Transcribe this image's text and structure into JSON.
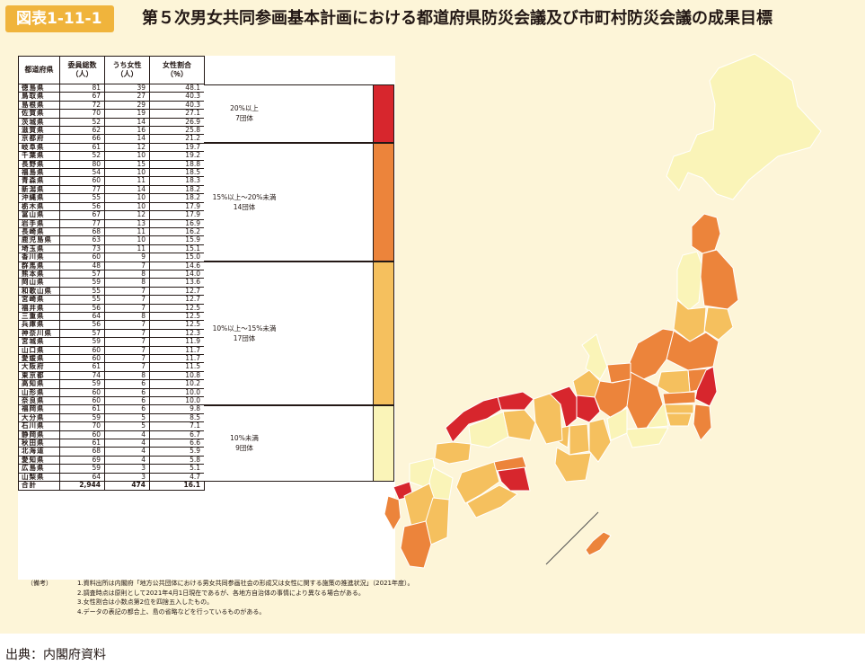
{
  "header": {
    "figure_label": "図表1-11-1",
    "title": "第５次男女共同参画基本計画における都道府県防災会議及び市町村防災会議の成果目標"
  },
  "chart_data": {
    "type": "table",
    "columns": [
      "都道府県",
      "委員総数\n（人）",
      "うち女性\n（人）",
      "女性割合\n（％）"
    ],
    "rows": [
      [
        "徳島県",
        "81",
        "39",
        "48.1"
      ],
      [
        "鳥取県",
        "67",
        "27",
        "40.3"
      ],
      [
        "島根県",
        "72",
        "29",
        "40.3"
      ],
      [
        "佐賀県",
        "70",
        "19",
        "27.1"
      ],
      [
        "茨城県",
        "52",
        "14",
        "26.9"
      ],
      [
        "滋賀県",
        "62",
        "16",
        "25.8"
      ],
      [
        "京都府",
        "66",
        "14",
        "21.2"
      ],
      [
        "岐阜県",
        "61",
        "12",
        "19.7"
      ],
      [
        "千葉県",
        "52",
        "10",
        "19.2"
      ],
      [
        "長野県",
        "80",
        "15",
        "18.8"
      ],
      [
        "福島県",
        "54",
        "10",
        "18.5"
      ],
      [
        "青森県",
        "60",
        "11",
        "18.3"
      ],
      [
        "新潟県",
        "77",
        "14",
        "18.2"
      ],
      [
        "沖縄県",
        "55",
        "10",
        "18.2"
      ],
      [
        "栃木県",
        "56",
        "10",
        "17.9"
      ],
      [
        "富山県",
        "67",
        "12",
        "17.9"
      ],
      [
        "岩手県",
        "77",
        "13",
        "16.9"
      ],
      [
        "長崎県",
        "68",
        "11",
        "16.2"
      ],
      [
        "鹿児島県",
        "63",
        "10",
        "15.9"
      ],
      [
        "埼玉県",
        "73",
        "11",
        "15.1"
      ],
      [
        "香川県",
        "60",
        "9",
        "15.0"
      ],
      [
        "群馬県",
        "48",
        "7",
        "14.6"
      ],
      [
        "熊本県",
        "57",
        "8",
        "14.0"
      ],
      [
        "岡山県",
        "59",
        "8",
        "13.6"
      ],
      [
        "和歌山県",
        "55",
        "7",
        "12.7"
      ],
      [
        "宮崎県",
        "55",
        "7",
        "12.7"
      ],
      [
        "福井県",
        "56",
        "7",
        "12.5"
      ],
      [
        "三重県",
        "64",
        "8",
        "12.5"
      ],
      [
        "兵庫県",
        "56",
        "7",
        "12.5"
      ],
      [
        "神奈川県",
        "57",
        "7",
        "12.3"
      ],
      [
        "宮城県",
        "59",
        "7",
        "11.9"
      ],
      [
        "山口県",
        "60",
        "7",
        "11.7"
      ],
      [
        "愛媛県",
        "60",
        "7",
        "11.7"
      ],
      [
        "大阪府",
        "61",
        "7",
        "11.5"
      ],
      [
        "東京都",
        "74",
        "8",
        "10.8"
      ],
      [
        "高知県",
        "59",
        "6",
        "10.2"
      ],
      [
        "山形県",
        "60",
        "6",
        "10.0"
      ],
      [
        "奈良県",
        "60",
        "6",
        "10.0"
      ],
      [
        "福岡県",
        "61",
        "6",
        "9.8"
      ],
      [
        "大分県",
        "59",
        "5",
        "8.5"
      ],
      [
        "石川県",
        "70",
        "5",
        "7.1"
      ],
      [
        "静岡県",
        "60",
        "4",
        "6.7"
      ],
      [
        "秋田県",
        "61",
        "4",
        "6.6"
      ],
      [
        "北海道",
        "68",
        "4",
        "5.9"
      ],
      [
        "愛知県",
        "69",
        "4",
        "5.8"
      ],
      [
        "広島県",
        "59",
        "3",
        "5.1"
      ],
      [
        "山梨県",
        "64",
        "3",
        "4.7"
      ]
    ],
    "total": [
      "合計",
      "2,944",
      "474",
      "16.1"
    ],
    "groups": [
      {
        "label": "20%以上\n7団体",
        "rows": 7,
        "color": "#d7262d"
      },
      {
        "label": "15%以上～20%未満\n14団体",
        "rows": 14,
        "color": "#ec843b"
      },
      {
        "label": "10%以上～15%未満\n17団体",
        "rows": 17,
        "color": "#f5c05e"
      },
      {
        "label": "10%未満\n9団体",
        "rows": 9,
        "color": "#faf4b8"
      }
    ]
  },
  "notes": {
    "head": "（備考）",
    "lines": [
      "1.資料出所は内閣府「地方公共団体における男女共同参画社会の形成又は女性に関する施策の推進状況」（2021年度）。",
      "2.調査時点は原則として2021年4月1日現在であるが、各地方自治体の事情により異なる場合がある。",
      "3.女性割合は小数点第2位を四捨五入したもの。",
      "4.データの表記の都合上、島の省略などを行っているものがある。"
    ]
  },
  "source": "出典：内閣府資料",
  "map": {
    "colors": {
      "red": "#d7262d",
      "orange": "#ec843b",
      "yellow": "#f5c05e",
      "pale": "#faf4b8"
    },
    "regions": [
      {
        "name": "北海道",
        "color": "pale"
      },
      {
        "name": "青森県",
        "color": "orange"
      },
      {
        "name": "岩手県",
        "color": "orange"
      },
      {
        "name": "秋田県",
        "color": "pale"
      },
      {
        "name": "宮城県",
        "color": "yellow"
      },
      {
        "name": "山形県",
        "color": "yellow"
      },
      {
        "name": "福島県",
        "color": "orange"
      },
      {
        "name": "茨城県",
        "color": "red"
      },
      {
        "name": "栃木県",
        "color": "orange"
      },
      {
        "name": "群馬県",
        "color": "yellow"
      },
      {
        "name": "埼玉県",
        "color": "orange"
      },
      {
        "name": "千葉県",
        "color": "orange"
      },
      {
        "name": "東京都",
        "color": "yellow"
      },
      {
        "name": "神奈川県",
        "color": "yellow"
      },
      {
        "name": "新潟県",
        "color": "orange"
      },
      {
        "name": "富山県",
        "color": "orange"
      },
      {
        "name": "石川県",
        "color": "pale"
      },
      {
        "name": "福井県",
        "color": "yellow"
      },
      {
        "name": "山梨県",
        "color": "pale"
      },
      {
        "name": "長野県",
        "color": "orange"
      },
      {
        "name": "岐阜県",
        "color": "orange"
      },
      {
        "name": "静岡県",
        "color": "pale"
      },
      {
        "name": "愛知県",
        "color": "pale"
      },
      {
        "name": "三重県",
        "color": "yellow"
      },
      {
        "name": "滋賀県",
        "color": "red"
      },
      {
        "name": "京都府",
        "color": "red"
      },
      {
        "name": "大阪府",
        "color": "yellow"
      },
      {
        "name": "兵庫県",
        "color": "yellow"
      },
      {
        "name": "奈良県",
        "color": "yellow"
      },
      {
        "name": "和歌山県",
        "color": "yellow"
      },
      {
        "name": "鳥取県",
        "color": "red"
      },
      {
        "name": "島根県",
        "color": "red"
      },
      {
        "name": "岡山県",
        "color": "yellow"
      },
      {
        "name": "広島県",
        "color": "pale"
      },
      {
        "name": "山口県",
        "color": "yellow"
      },
      {
        "name": "徳島県",
        "color": "red"
      },
      {
        "name": "香川県",
        "color": "orange"
      },
      {
        "name": "愛媛県",
        "color": "yellow"
      },
      {
        "name": "高知県",
        "color": "yellow"
      },
      {
        "name": "福岡県",
        "color": "pale"
      },
      {
        "name": "佐賀県",
        "color": "red"
      },
      {
        "name": "長崎県",
        "color": "orange"
      },
      {
        "name": "熊本県",
        "color": "yellow"
      },
      {
        "name": "大分県",
        "color": "pale"
      },
      {
        "name": "宮崎県",
        "color": "yellow"
      },
      {
        "name": "鹿児島県",
        "color": "orange"
      },
      {
        "name": "沖縄県",
        "color": "orange"
      }
    ]
  }
}
